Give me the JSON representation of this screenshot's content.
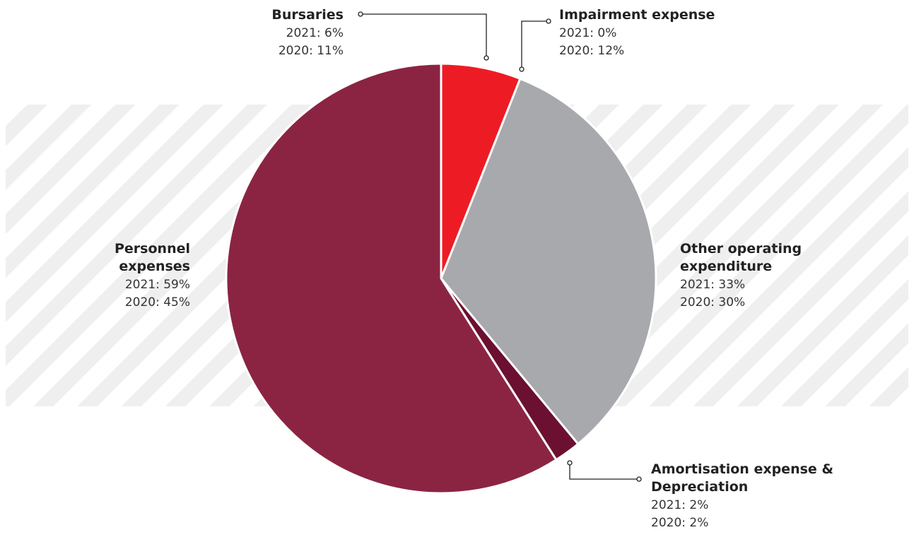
{
  "chart_data": {
    "type": "pie",
    "title": "",
    "order": "clockwise from top",
    "slices": [
      {
        "name": "Bursaries",
        "value_2021": 6,
        "value_2020": 11,
        "color": "#ed1c24",
        "title_lines": [
          "Bursaries"
        ],
        "line_2021": "2021: 6%",
        "line_2020": "2020: 11%"
      },
      {
        "name": "Impairment expense",
        "value_2021": 0,
        "value_2020": 12,
        "color": "#ed1c24",
        "title_lines": [
          "Impairment expense"
        ],
        "line_2021": "2021: 0%",
        "line_2020": "2020: 12%"
      },
      {
        "name": "Other operating expenditure",
        "value_2021": 33,
        "value_2020": 30,
        "color": "#a8a9ad",
        "title_lines": [
          "Other operating",
          "expenditure"
        ],
        "line_2021": "2021: 33%",
        "line_2020": "2020: 30%"
      },
      {
        "name": "Amortisation expense & Depreciation",
        "value_2021": 2,
        "value_2020": 2,
        "color": "#6b1030",
        "title_lines": [
          "Amortisation expense &",
          "Depreciation"
        ],
        "line_2021": "2021: 2%",
        "line_2020": "2020: 2%"
      },
      {
        "name": "Personnel expenses",
        "value_2021": 59,
        "value_2020": 45,
        "color": "#8b2442",
        "title_lines": [
          "Personnel",
          "expenses"
        ],
        "line_2021": "2021: 59%",
        "line_2020": "2020: 45%"
      }
    ],
    "background_pattern": "diagonal stripes",
    "stripe_color": "#efeff0"
  }
}
